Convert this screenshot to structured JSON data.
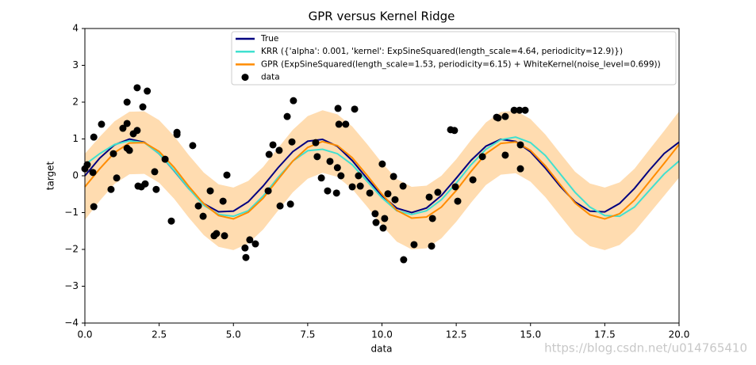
{
  "chart_data": {
    "type": "line",
    "title": "GPR versus Kernel Ridge",
    "xlabel": "data",
    "ylabel": "target",
    "watermark": "https://blog.csdn.net/u014765410",
    "xlim": [
      0,
      20
    ],
    "ylim": [
      -4,
      4
    ],
    "xticks": [
      {
        "value": 0,
        "label": "0.0"
      },
      2.5,
      {
        "value": 5,
        "label": "5.0"
      },
      7.5,
      {
        "value": 10,
        "label": "10.0"
      },
      12.5,
      {
        "value": 15,
        "label": "15.0"
      },
      17.5,
      {
        "value": 20,
        "label": "20.0"
      }
    ],
    "yticks": [
      {
        "value": -4,
        "label": "−4"
      },
      {
        "value": -3,
        "label": "−3"
      },
      {
        "value": -2,
        "label": "−2"
      },
      {
        "value": -1,
        "label": "−1"
      },
      0,
      1,
      2,
      3,
      4
    ],
    "legend": "upper right",
    "x": [
      0,
      0.5,
      1,
      1.5,
      2,
      2.5,
      3,
      3.5,
      4,
      4.5,
      5,
      5.5,
      6,
      6.5,
      7,
      7.5,
      8,
      8.5,
      9,
      9.5,
      10,
      10.5,
      11,
      11.5,
      12,
      12.5,
      13,
      13.5,
      14,
      14.5,
      15,
      15.5,
      16,
      16.5,
      17,
      17.5,
      18,
      18.5,
      19,
      19.5,
      20
    ],
    "series": [
      {
        "name": "True",
        "color": "#000080",
        "values": [
          0,
          0.479,
          0.841,
          0.997,
          0.909,
          0.598,
          0.141,
          -0.351,
          -0.757,
          -0.978,
          -0.959,
          -0.706,
          -0.279,
          0.215,
          0.657,
          0.938,
          0.989,
          0.798,
          0.412,
          -0.075,
          -0.544,
          -0.88,
          -1.0,
          -0.875,
          -0.537,
          -0.066,
          0.42,
          0.804,
          0.991,
          0.935,
          0.65,
          0.207,
          -0.288,
          -0.712,
          -0.961,
          -0.98,
          -0.751,
          -0.342,
          0.15,
          0.606,
          0.913
        ]
      },
      {
        "name": "KRR ({'alpha': 0.001, 'kernel': ExpSineSquared(length_scale=4.64, periodicity=12.9)})",
        "color": "#40e0d0",
        "values": [
          0.3,
          0.6,
          0.85,
          0.95,
          0.9,
          0.6,
          0.15,
          -0.35,
          -0.8,
          -1.05,
          -1.1,
          -0.95,
          -0.55,
          -0.05,
          0.4,
          0.68,
          0.72,
          0.6,
          0.3,
          -0.15,
          -0.6,
          -0.95,
          -1.05,
          -0.95,
          -0.65,
          -0.2,
          0.3,
          0.72,
          0.98,
          1.05,
          0.9,
          0.55,
          0.05,
          -0.45,
          -0.85,
          -1.08,
          -1.1,
          -0.85,
          -0.4,
          0.05,
          0.4
        ]
      },
      {
        "name": "GPR (ExpSineSquared(length_scale=1.53, periodicity=6.15) + WhiteKernel(noise_level=0.699))",
        "color": "#ff8c00",
        "band_color": "#ffdcb0",
        "values": [
          -0.3,
          0.19,
          0.63,
          0.89,
          0.9,
          0.66,
          0.23,
          -0.29,
          -0.76,
          -1.08,
          -1.17,
          -0.99,
          -0.61,
          -0.1,
          0.4,
          0.77,
          0.93,
          0.82,
          0.49,
          0.01,
          -0.5,
          -0.94,
          -1.15,
          -1.12,
          -0.85,
          -0.4,
          0.12,
          0.6,
          0.88,
          0.92,
          0.69,
          0.27,
          -0.24,
          -0.74,
          -1.06,
          -1.17,
          -1.03,
          -0.66,
          -0.16,
          0.34,
          0.85
        ],
        "std": [
          0.9,
          0.87,
          0.85,
          0.85,
          0.85,
          0.85,
          0.85,
          0.85,
          0.85,
          0.85,
          0.85,
          0.85,
          0.85,
          0.85,
          0.85,
          0.85,
          0.85,
          0.85,
          0.85,
          0.85,
          0.85,
          0.85,
          0.85,
          0.85,
          0.85,
          0.85,
          0.85,
          0.85,
          0.85,
          0.85,
          0.85,
          0.85,
          0.85,
          0.85,
          0.85,
          0.85,
          0.85,
          0.85,
          0.87,
          0.88,
          0.9
        ]
      },
      {
        "name": "data",
        "type": "scatter",
        "color": "#000000",
        "x": [
          0.0,
          0.08,
          0.27,
          0.3,
          0.3,
          0.56,
          0.88,
          0.96,
          1.07,
          1.28,
          1.42,
          1.42,
          1.42,
          1.5,
          1.63,
          1.76,
          1.76,
          1.79,
          1.9,
          1.95,
          2.03,
          2.1,
          2.35,
          2.4,
          2.7,
          2.91,
          3.1,
          3.1,
          3.63,
          3.82,
          3.98,
          4.22,
          4.35,
          4.43,
          4.65,
          4.7,
          4.78,
          5.39,
          5.42,
          5.55,
          5.74,
          6.17,
          6.2,
          6.33,
          6.54,
          6.57,
          6.81,
          6.92,
          6.97,
          7.02,
          7.77,
          7.82,
          7.96,
          8.17,
          8.25,
          8.47,
          8.5,
          8.52,
          8.55,
          8.62,
          8.78,
          9.0,
          9.08,
          9.21,
          9.27,
          9.59,
          9.77,
          9.8,
          10.01,
          10.04,
          10.09,
          10.2,
          10.39,
          10.44,
          10.71,
          10.73,
          11.08,
          11.59,
          11.67,
          11.7,
          11.88,
          12.31,
          12.44,
          12.47,
          12.55,
          13.06,
          13.38,
          13.86,
          13.91,
          14.15,
          14.15,
          14.45,
          14.63,
          14.66,
          14.66,
          14.82
        ],
        "values": [
          0.19,
          0.3,
          0.09,
          1.05,
          -0.84,
          1.4,
          -0.37,
          0.6,
          -0.06,
          1.29,
          2.0,
          1.42,
          0.75,
          0.69,
          1.14,
          2.39,
          1.23,
          -0.28,
          -0.3,
          1.87,
          -0.22,
          2.3,
          0.11,
          -0.37,
          0.45,
          -1.23,
          1.18,
          1.12,
          0.82,
          -0.82,
          -1.1,
          -0.41,
          -1.63,
          -1.57,
          -0.69,
          -1.63,
          0.02,
          -1.96,
          -2.22,
          -1.74,
          -1.85,
          -0.41,
          0.58,
          0.84,
          0.69,
          -0.82,
          1.61,
          -0.77,
          0.92,
          2.04,
          0.9,
          0.52,
          -0.06,
          -0.41,
          0.39,
          -0.47,
          0.22,
          1.83,
          1.4,
          0.0,
          1.4,
          -0.3,
          1.81,
          0.0,
          -0.28,
          -0.47,
          -1.03,
          -1.27,
          0.32,
          -1.42,
          -1.16,
          -0.49,
          -0.02,
          -0.65,
          -0.28,
          -2.28,
          -1.87,
          -0.58,
          -1.91,
          -1.16,
          -0.45,
          1.25,
          1.23,
          -0.3,
          -0.69,
          -0.11,
          0.52,
          1.59,
          1.57,
          1.61,
          0.56,
          1.78,
          1.78,
          0.84,
          0.19,
          1.78
        ]
      }
    ]
  }
}
